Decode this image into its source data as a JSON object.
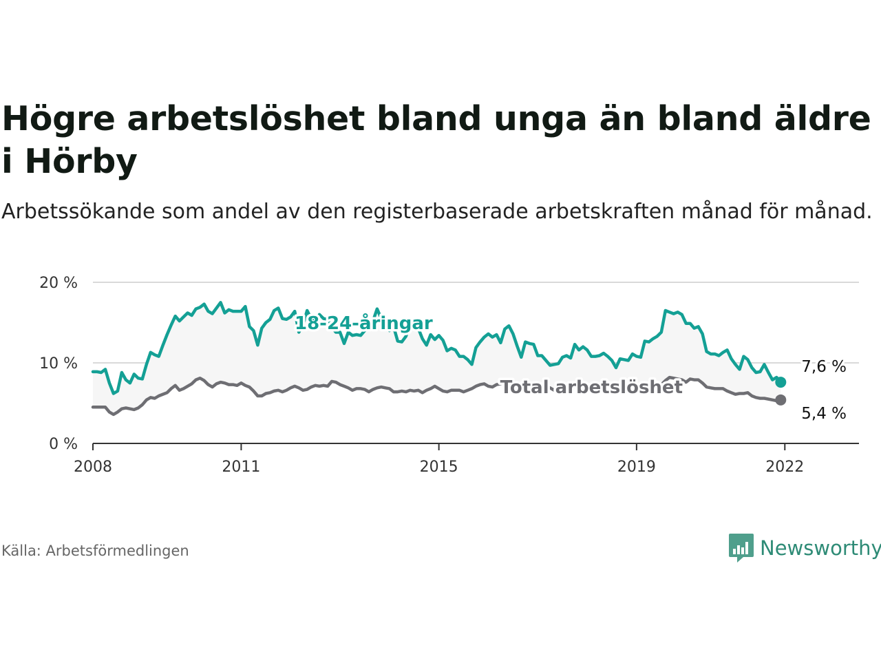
{
  "title": "Högre arbetslöshet bland unga än bland äldre i Hörby",
  "subtitle": "Arbetssökande som andel av den registerbaserade arbetskraften månad för månad.",
  "source": "Källa: Arbetsförmedlingen",
  "brand": "Newsworthy",
  "colors": {
    "youth": "#14a095",
    "total": "#6e6e73",
    "band": "#f6f6f6",
    "grid": "#d9d9d9",
    "axis": "#333333",
    "brand": "#2e8b76"
  },
  "chart_data": {
    "type": "line",
    "x_unit": "decimal year (monthly)",
    "x_start": 2008.0,
    "x_step": 0.0833333,
    "ylim": [
      0,
      20
    ],
    "y_ticks": [
      0,
      10,
      20
    ],
    "y_tick_labels": [
      "0 %",
      "10 %",
      "20 %"
    ],
    "x_ticks": [
      2008,
      2011,
      2015,
      2019,
      2022
    ],
    "x_tick_labels": [
      "2008",
      "2011",
      "2015",
      "2019",
      "2022"
    ],
    "grid": "horizontal",
    "series": [
      {
        "name": "18-24-åringar",
        "color_key": "youth",
        "label": "18-24-åringar",
        "end_label": "7,6 %",
        "values": [
          8.9,
          8.9,
          8.8,
          9.2,
          7.5,
          6.2,
          6.5,
          8.8,
          7.9,
          7.5,
          8.6,
          8.1,
          8,
          9.8,
          11.3,
          11.0,
          10.8,
          12.2,
          13.5,
          14.7,
          15.8,
          15.2,
          15.7,
          16.2,
          15.9,
          16.7,
          16.9,
          17.3,
          16.4,
          16.1,
          16.8,
          17.5,
          16.2,
          16.6,
          16.4,
          16.4,
          16.4,
          17.0,
          14.5,
          14.0,
          12.2,
          14.3,
          15.0,
          15.4,
          16.5,
          16.8,
          15.5,
          15.4,
          15.7,
          16.4,
          13.8,
          14.7,
          16.5,
          15.5,
          15.0,
          16.0,
          15.5,
          15.4,
          14.4,
          13.8,
          13.8,
          12.4,
          13.8,
          13.4,
          13.5,
          13.4,
          14.0,
          14.5,
          15.2,
          16.7,
          15.5,
          14.8,
          14.0,
          14.5,
          12.7,
          12.6,
          13.3,
          14.8,
          14.5,
          14.3,
          13.0,
          12.2,
          13.5,
          12.9,
          13.4,
          12.8,
          11.5,
          11.8,
          11.6,
          10.8,
          10.8,
          10.4,
          9.8,
          11.9,
          12.6,
          13.2,
          13.6,
          13.2,
          13.5,
          12.5,
          14.2,
          14.6,
          13.6,
          12.1,
          10.7,
          12.6,
          12.4,
          12.3,
          10.9,
          10.9,
          10.3,
          9.7,
          9.8,
          9.9,
          10.7,
          10.9,
          10.6,
          12.3,
          11.6,
          12.0,
          11.6,
          10.8,
          10.8,
          10.9,
          11.2,
          10.8,
          10.3,
          9.4,
          10.5,
          10.4,
          10.3,
          11.1,
          10.8,
          10.7,
          12.7,
          12.6,
          13.0,
          13.3,
          13.8,
          16.5,
          16.3,
          16.1,
          16.3,
          16.0,
          14.9,
          14.9,
          14.3,
          14.5,
          13.6,
          11.4,
          11.1,
          11.1,
          10.9,
          11.3,
          11.6,
          10.5,
          9.8,
          9.2,
          10.8,
          10.4,
          9.4,
          8.8,
          8.9,
          9.8,
          8.8,
          7.9,
          8.2,
          7.6
        ]
      },
      {
        "name": "Total arbetslöshet",
        "color_key": "total",
        "label": "Total arbetslöshet",
        "end_label": "5,4 %",
        "values": [
          4.5,
          4.5,
          4.5,
          4.5,
          3.9,
          3.6,
          3.9,
          4.3,
          4.4,
          4.3,
          4.2,
          4.4,
          4.8,
          5.4,
          5.7,
          5.6,
          5.9,
          6.1,
          6.3,
          6.8,
          7.2,
          6.6,
          6.8,
          7.1,
          7.4,
          7.9,
          8.1,
          7.8,
          7.3,
          7.0,
          7.4,
          7.6,
          7.5,
          7.3,
          7.3,
          7.2,
          7.5,
          7.2,
          7.0,
          6.5,
          5.9,
          5.9,
          6.2,
          6.3,
          6.5,
          6.6,
          6.4,
          6.6,
          6.9,
          7.1,
          6.9,
          6.6,
          6.7,
          7.0,
          7.2,
          7.1,
          7.2,
          7.1,
          7.7,
          7.6,
          7.3,
          7.1,
          6.9,
          6.6,
          6.8,
          6.8,
          6.7,
          6.4,
          6.7,
          6.9,
          7.0,
          6.9,
          6.8,
          6.4,
          6.4,
          6.5,
          6.4,
          6.6,
          6.5,
          6.6,
          6.3,
          6.6,
          6.8,
          7.1,
          6.8,
          6.5,
          6.4,
          6.6,
          6.6,
          6.6,
          6.4,
          6.6,
          6.8,
          7.1,
          7.3,
          7.4,
          7.1,
          7.0,
          7.3,
          7.4,
          7.6,
          7.3,
          7.5,
          7.3,
          7.0,
          7.1,
          7.0,
          7.0,
          6.9,
          6.8,
          6.8,
          6.9,
          6.6,
          6.7,
          7.0,
          6.9,
          6.7,
          7.1,
          7.2,
          7.3,
          7.1,
          7.2,
          7.2,
          7.1,
          7.0,
          7.3,
          7.1,
          6.9,
          7.1,
          7.1,
          7.1,
          7.0,
          7.0,
          6.9,
          7.2,
          7.3,
          7.1,
          7.0,
          7.3,
          7.8,
          8.2,
          8.1,
          8.0,
          7.9,
          7.6,
          8.0,
          7.9,
          7.9,
          7.5,
          7.0,
          6.9,
          6.8,
          6.8,
          6.8,
          6.5,
          6.3,
          6.1,
          6.2,
          6.2,
          6.3,
          5.9,
          5.7,
          5.6,
          5.6,
          5.5,
          5.4,
          5.3,
          5.4
        ]
      }
    ]
  }
}
